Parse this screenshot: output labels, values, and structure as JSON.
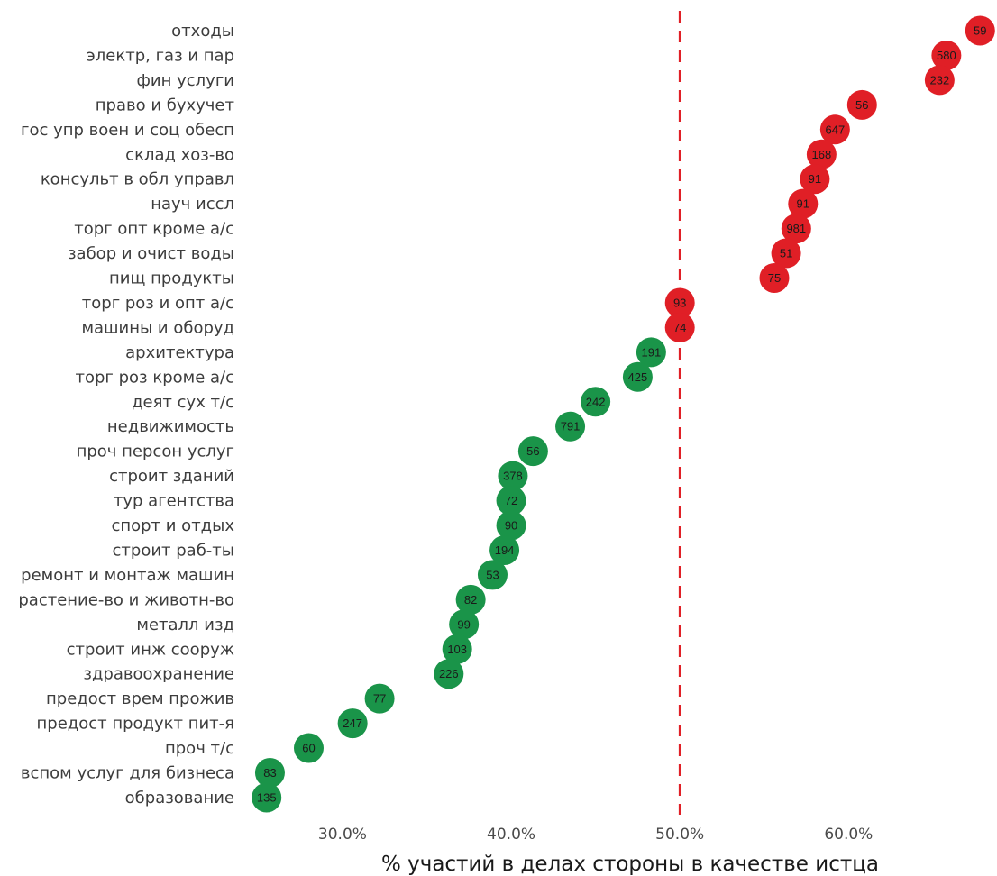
{
  "chart_data": {
    "type": "scatter",
    "xlabel": "% участий в делах стороны в качестве истца",
    "xlim": [
      24.5,
      68.8
    ],
    "xticks": [
      30,
      40,
      50,
      60
    ],
    "xtick_labels": [
      "30.0%",
      "40.0%",
      "50.0%",
      "60.0%"
    ],
    "reference_line": 50,
    "reference_line_style": "dashed",
    "grid": false,
    "colors": {
      "above": "#e01f26",
      "below": "#1a9449",
      "reference": "#e01f26"
    },
    "points": [
      {
        "category": "отходы",
        "x": 67.8,
        "n": "59"
      },
      {
        "category": "электр, газ и пар",
        "x": 65.8,
        "n": "580"
      },
      {
        "category": "фин услуги",
        "x": 65.4,
        "n": "232"
      },
      {
        "category": "право и бухучет",
        "x": 60.8,
        "n": "56"
      },
      {
        "category": "гос упр воен и соц обесп",
        "x": 59.2,
        "n": "647"
      },
      {
        "category": "склад хоз-во",
        "x": 58.4,
        "n": "168"
      },
      {
        "category": "консульт в обл управл",
        "x": 58.0,
        "n": "91"
      },
      {
        "category": "науч иссл",
        "x": 57.3,
        "n": "91"
      },
      {
        "category": "торг опт кроме а/с",
        "x": 56.9,
        "n": "981"
      },
      {
        "category": "забор и очист воды",
        "x": 56.3,
        "n": "51"
      },
      {
        "category": "пищ продукты",
        "x": 55.6,
        "n": "75"
      },
      {
        "category": "торг роз и опт а/с",
        "x": 50.0,
        "n": "93"
      },
      {
        "category": "машины и оборуд",
        "x": 50.0,
        "n": "74"
      },
      {
        "category": "архитектура",
        "x": 48.3,
        "n": "191"
      },
      {
        "category": "торг роз кроме а/с",
        "x": 47.5,
        "n": "425"
      },
      {
        "category": "деят сух т/с",
        "x": 45.0,
        "n": "242"
      },
      {
        "category": "недвижимость",
        "x": 43.5,
        "n": "791"
      },
      {
        "category": "проч персон услуг",
        "x": 41.3,
        "n": "56"
      },
      {
        "category": "строит зданий",
        "x": 40.1,
        "n": "378"
      },
      {
        "category": "тур агентства",
        "x": 40.0,
        "n": "72"
      },
      {
        "category": "спорт и отдых",
        "x": 40.0,
        "n": "90"
      },
      {
        "category": "строит раб-ты",
        "x": 39.6,
        "n": "194"
      },
      {
        "category": "ремонт и монтаж машин",
        "x": 38.9,
        "n": "53"
      },
      {
        "category": "растение-во и животн-во",
        "x": 37.6,
        "n": "82"
      },
      {
        "category": "металл изд",
        "x": 37.2,
        "n": "99"
      },
      {
        "category": "строит инж сооруж",
        "x": 36.8,
        "n": "103"
      },
      {
        "category": "здравоохранение",
        "x": 36.3,
        "n": "226"
      },
      {
        "category": "предост врем прожив",
        "x": 32.2,
        "n": "77"
      },
      {
        "category": "предост продукт пит-я",
        "x": 30.6,
        "n": "247"
      },
      {
        "category": "проч т/с",
        "x": 28.0,
        "n": "60"
      },
      {
        "category": "вспом услуг для бизнеса",
        "x": 25.7,
        "n": "83"
      },
      {
        "category": "образование",
        "x": 25.5,
        "n": "135"
      }
    ]
  }
}
